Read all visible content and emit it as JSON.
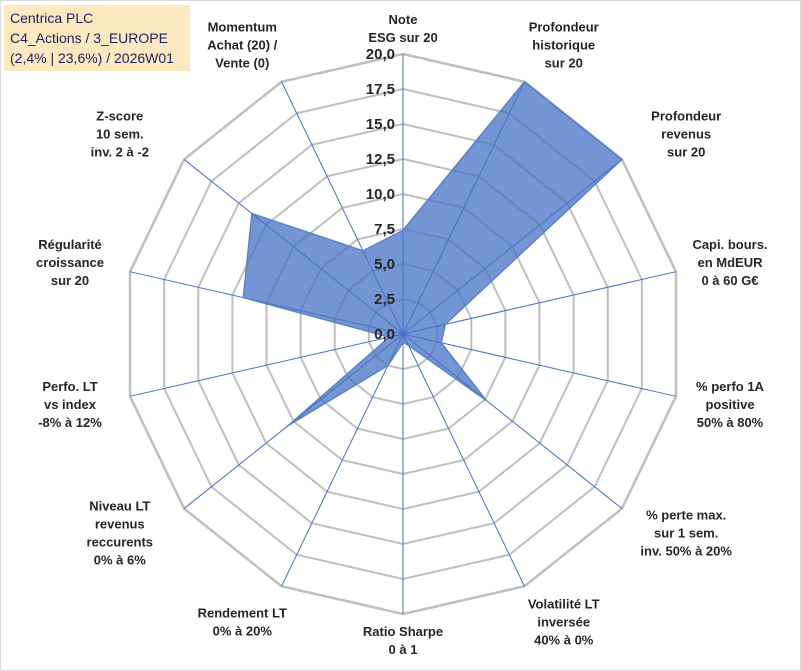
{
  "title": {
    "lines": [
      "Centrica PLC",
      "C4_Actions / 3_EUROPE",
      "(2,4% | 23,6%) / 2026W01"
    ]
  },
  "colors": {
    "fill": "#4472c4",
    "fill_opacity": "0.75",
    "series_stroke": "#5b82c4",
    "grid": "#bfbfbf",
    "spoke": "#4472c4",
    "title_bg": "#fde9bf"
  },
  "chart_data": {
    "type": "radar",
    "title": "Centrica PLC",
    "r_range": [
      0,
      20
    ],
    "r_ticks": [
      "0,0",
      "2,5",
      "5,0",
      "7,5",
      "10,0",
      "12,5",
      "15,0",
      "17,5",
      "20,0"
    ],
    "axes": [
      {
        "label": [
          "Note",
          "ESG sur 20"
        ]
      },
      {
        "label": [
          "Profondeur",
          "historique",
          "sur 20"
        ]
      },
      {
        "label": [
          "Profondeur",
          "revenus",
          "sur 20"
        ]
      },
      {
        "label": [
          "Capi. bours.",
          "en MdEUR",
          "0 à 60 G€"
        ]
      },
      {
        "label": [
          "% perfo 1A",
          "positive",
          "50% à 80%"
        ]
      },
      {
        "label": [
          "% perte max.",
          "sur 1 sem.",
          "inv. 50% à 20%"
        ]
      },
      {
        "label": [
          "Volatilité LT",
          "inversée",
          "40% à 0%"
        ]
      },
      {
        "label": [
          "Ratio Sharpe",
          "0 à 1"
        ]
      },
      {
        "label": [
          "Rendement LT",
          "0% à 20%"
        ]
      },
      {
        "label": [
          "Niveau LT",
          "revenus",
          "reccurents",
          "0% à 6%"
        ]
      },
      {
        "label": [
          "Perfo. LT",
          "vs index",
          "-8% à 12%"
        ]
      },
      {
        "label": [
          "Régularité",
          "croissance",
          "sur 20"
        ]
      },
      {
        "label": [
          "Z-score",
          "10 sem.",
          "inv. 2 à -2"
        ]
      },
      {
        "label": [
          "Momentum",
          "Achat (20) /",
          "Vente (0)"
        ]
      }
    ],
    "series": [
      {
        "name": "Centrica PLC",
        "values": [
          7.4,
          20.0,
          20.0,
          3.1,
          2.8,
          7.6,
          0.9,
          0.6,
          2.5,
          10.5,
          1.0,
          11.7,
          13.8,
          6.6
        ]
      }
    ]
  }
}
